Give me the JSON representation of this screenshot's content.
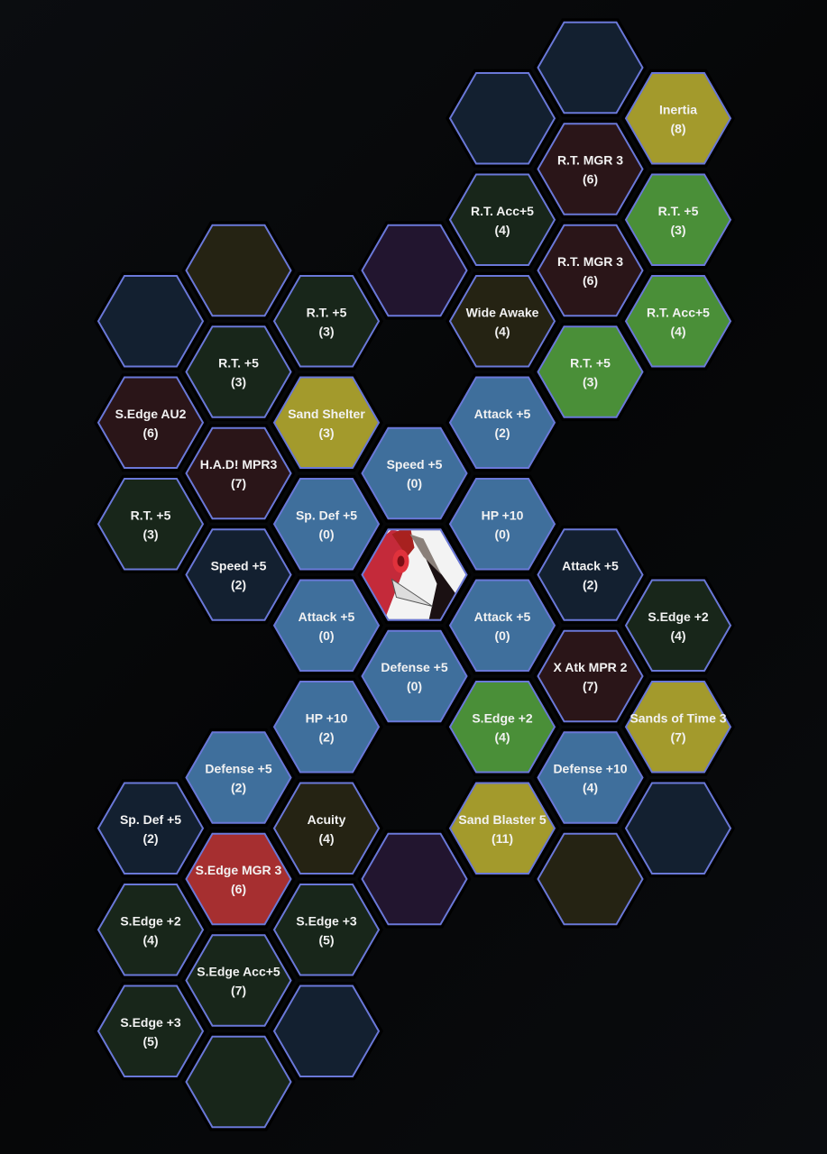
{
  "colors": {
    "border": "#6a78d8",
    "blue": "#3f6f9c",
    "green": "#4a8f38",
    "yellow": "#a39a2c",
    "red": "#a62f30",
    "dark-green": "#18261a",
    "dark-red": "#2a1518",
    "dark-blue": "#132030",
    "dark-olive": "#252313",
    "purple": "#22152f"
  },
  "center": {
    "icon": "pokemon-portrait"
  },
  "tiles": [
    {
      "label": "",
      "energy": "",
      "color": "dark-blue"
    },
    {
      "label": "R.T. MGR 3",
      "energy": "(6)",
      "color": "dark-red"
    },
    {
      "label": "R.T. MGR 3",
      "energy": "(6)",
      "color": "dark-red"
    },
    {
      "label": "R.T. +5",
      "energy": "(3)",
      "color": "green"
    },
    {
      "label": "Attack +5",
      "energy": "(2)",
      "color": "dark-blue"
    },
    {
      "label": "X Atk MPR 2",
      "energy": "(7)",
      "color": "dark-red"
    },
    {
      "label": "Defense +10",
      "energy": "(4)",
      "color": "blue"
    },
    {
      "label": "",
      "energy": "",
      "color": "dark-olive"
    },
    {
      "label": "Inertia",
      "energy": "(8)",
      "color": "yellow"
    },
    {
      "label": "R.T. +5",
      "energy": "(3)",
      "color": "green"
    },
    {
      "label": "R.T. Acc+5",
      "energy": "(4)",
      "color": "green"
    },
    {
      "label": "S.Edge +2",
      "energy": "(4)",
      "color": "dark-green"
    },
    {
      "label": "Sands of Time 3",
      "energy": "(7)",
      "color": "yellow"
    },
    {
      "label": "",
      "energy": "",
      "color": "dark-blue"
    },
    {
      "label": "",
      "energy": "",
      "color": "dark-blue"
    },
    {
      "label": "R.T. Acc+5",
      "energy": "(4)",
      "color": "dark-green"
    },
    {
      "label": "Wide Awake",
      "energy": "(4)",
      "color": "dark-olive"
    },
    {
      "label": "Attack +5",
      "energy": "(2)",
      "color": "blue"
    },
    {
      "label": "HP +10",
      "energy": "(0)",
      "color": "blue"
    },
    {
      "label": "Attack +5",
      "energy": "(0)",
      "color": "blue"
    },
    {
      "label": "S.Edge +2",
      "energy": "(4)",
      "color": "green"
    },
    {
      "label": "Sand Blaster 5",
      "energy": "(11)",
      "color": "yellow"
    },
    {
      "label": "",
      "energy": "",
      "color": "purple"
    },
    {
      "label": "Speed +5",
      "energy": "(0)",
      "color": "blue"
    },
    {
      "label": "Defense +5",
      "energy": "(0)",
      "color": "blue"
    },
    {
      "label": "",
      "energy": "",
      "color": "purple"
    },
    {
      "label": "R.T. +5",
      "energy": "(3)",
      "color": "dark-green"
    },
    {
      "label": "Sand Shelter",
      "energy": "(3)",
      "color": "yellow"
    },
    {
      "label": "Sp. Def +5",
      "energy": "(0)",
      "color": "blue"
    },
    {
      "label": "Attack +5",
      "energy": "(0)",
      "color": "blue"
    },
    {
      "label": "HP +10",
      "energy": "(2)",
      "color": "blue"
    },
    {
      "label": "Acuity",
      "energy": "(4)",
      "color": "dark-olive"
    },
    {
      "label": "S.Edge +3",
      "energy": "(5)",
      "color": "dark-green"
    },
    {
      "label": "",
      "energy": "",
      "color": "dark-blue"
    },
    {
      "label": "",
      "energy": "",
      "color": "dark-olive"
    },
    {
      "label": "R.T. +5",
      "energy": "(3)",
      "color": "dark-green"
    },
    {
      "label": "H.A.D! MPR3",
      "energy": "(7)",
      "color": "dark-red"
    },
    {
      "label": "Speed +5",
      "energy": "(2)",
      "color": "dark-blue"
    },
    {
      "label": "Defense +5",
      "energy": "(2)",
      "color": "blue"
    },
    {
      "label": "S.Edge MGR 3",
      "energy": "(6)",
      "color": "red"
    },
    {
      "label": "S.Edge Acc+5",
      "energy": "(7)",
      "color": "dark-green"
    },
    {
      "label": "",
      "energy": "",
      "color": "dark-green"
    },
    {
      "label": "",
      "energy": "",
      "color": "dark-blue"
    },
    {
      "label": "S.Edge AU2",
      "energy": "(6)",
      "color": "dark-red"
    },
    {
      "label": "R.T. +5",
      "energy": "(3)",
      "color": "dark-green"
    },
    {
      "label": "Sp. Def +5",
      "energy": "(2)",
      "color": "dark-blue"
    },
    {
      "label": "S.Edge +2",
      "energy": "(4)",
      "color": "dark-green"
    },
    {
      "label": "S.Edge +3",
      "energy": "(5)",
      "color": "dark-green"
    }
  ]
}
